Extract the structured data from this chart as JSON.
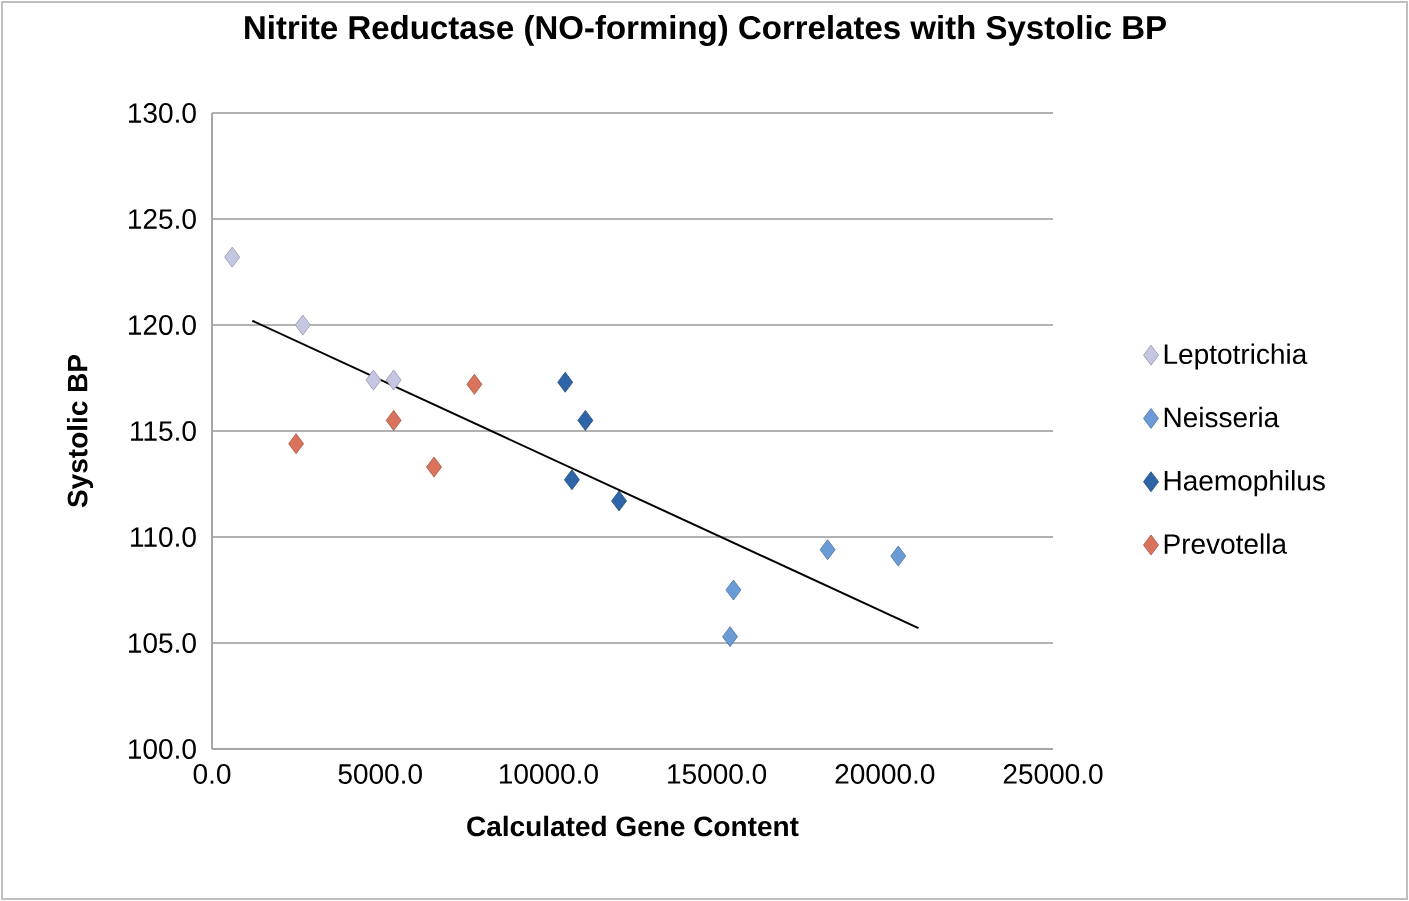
{
  "chart_data": {
    "type": "scatter",
    "title": "Nitrite Reductase (NO-forming) Correlates with Systolic BP",
    "xlabel": "Calculated Gene Content",
    "ylabel": "Systolic BP",
    "xlim": [
      0,
      25000
    ],
    "ylim": [
      100,
      130
    ],
    "xticks": [
      {
        "value": 0,
        "label": "0.0"
      },
      {
        "value": 5000,
        "label": "5000.0"
      },
      {
        "value": 10000,
        "label": "10000.0"
      },
      {
        "value": 15000,
        "label": "15000.0"
      },
      {
        "value": 20000,
        "label": "20000.0"
      },
      {
        "value": 25000,
        "label": "25000.0"
      }
    ],
    "yticks": [
      {
        "value": 100,
        "label": "100.0"
      },
      {
        "value": 105,
        "label": "105.0"
      },
      {
        "value": 110,
        "label": "110.0"
      },
      {
        "value": 115,
        "label": "115.0"
      },
      {
        "value": 120,
        "label": "120.0"
      },
      {
        "value": 125,
        "label": "125.0"
      },
      {
        "value": 130,
        "label": "130.0"
      }
    ],
    "grid": "y",
    "legend": "right",
    "marker": "diamond",
    "series": [
      {
        "name": "Leptotrichia",
        "color": "#c5c6e2",
        "x": [
          600,
          2700,
          4800,
          5400
        ],
        "values": [
          123.2,
          120.0,
          117.4,
          117.4
        ]
      },
      {
        "name": "Neisseria",
        "color": "#6a9bd6",
        "x": [
          15400,
          15500,
          18300,
          20400
        ],
        "values": [
          105.3,
          107.5,
          109.4,
          109.1
        ]
      },
      {
        "name": "Haemophilus",
        "color": "#2e64a8",
        "x": [
          10500,
          11100,
          10700,
          12100
        ],
        "values": [
          117.3,
          115.5,
          112.7,
          111.7
        ]
      },
      {
        "name": "Prevotella",
        "color": "#d9735c",
        "x": [
          2500,
          5400,
          6600,
          7800
        ],
        "values": [
          114.4,
          115.5,
          113.3,
          117.2
        ]
      },
      {
        "type": "line",
        "marker": "none",
        "color": "#000000",
        "x": [
          1200,
          21000
        ],
        "values": [
          120.2,
          105.7
        ]
      }
    ]
  }
}
